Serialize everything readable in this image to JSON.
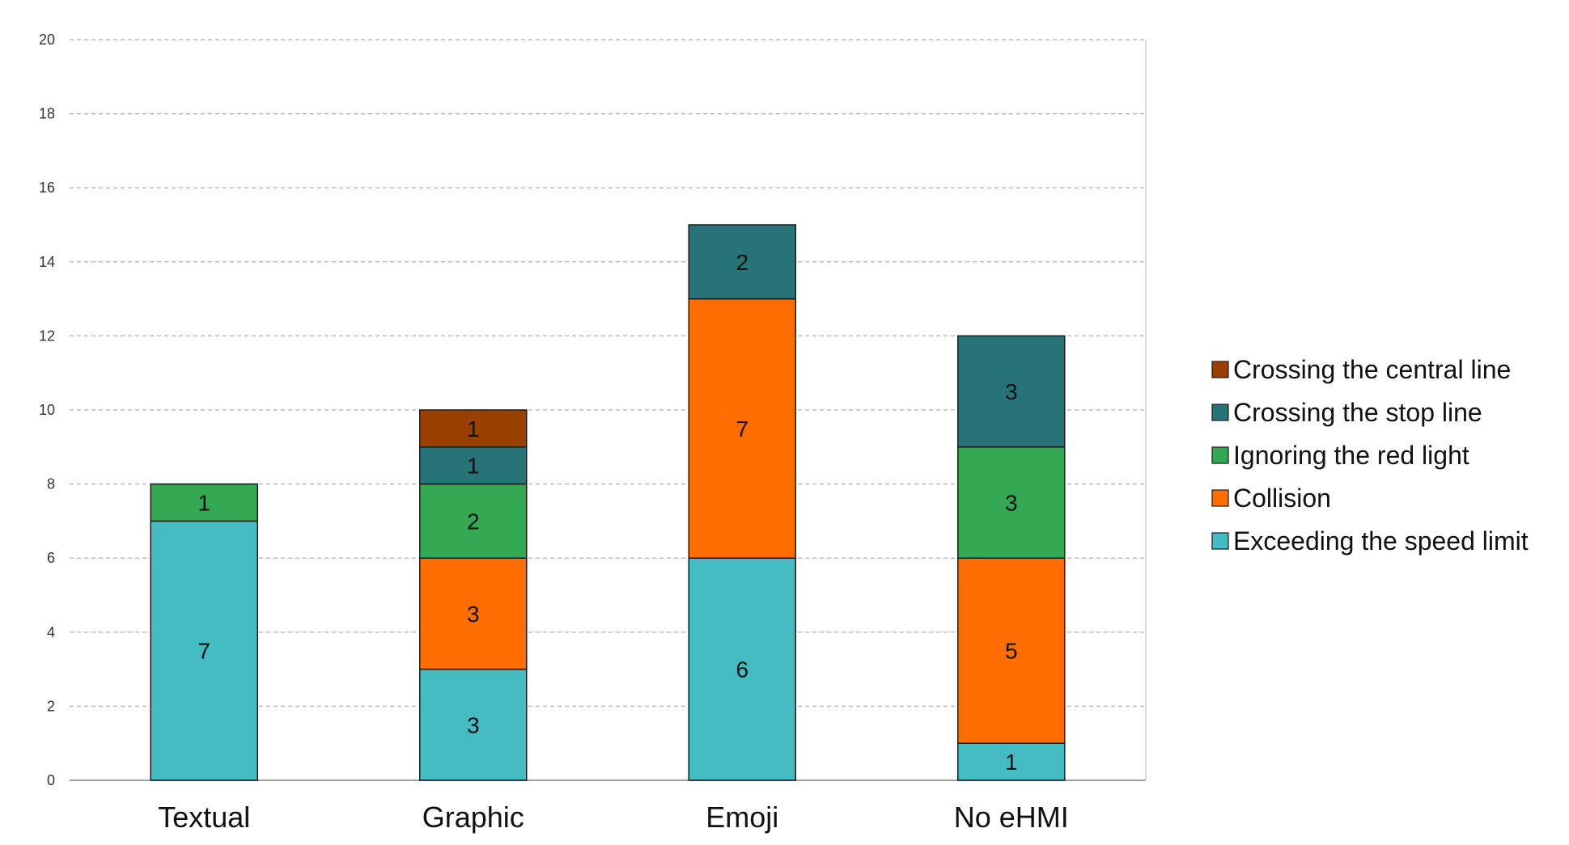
{
  "chart_data": {
    "type": "bar",
    "stacked": true,
    "title": "",
    "xlabel": "",
    "ylabel": "",
    "ylim": [
      0,
      20
    ],
    "yticks": [
      0,
      2,
      4,
      6,
      8,
      10,
      12,
      14,
      16,
      18,
      20
    ],
    "grid": true,
    "legend_position": "right",
    "categories": [
      "Textual",
      "Graphic",
      "Emoji",
      "No eHMI"
    ],
    "series": [
      {
        "name": "Exceeding the speed limit",
        "color": "#45BCC4",
        "values": [
          7,
          3,
          6,
          1
        ]
      },
      {
        "name": "Collision",
        "color": "#FF6D00",
        "values": [
          0,
          3,
          7,
          5
        ]
      },
      {
        "name": "Ignoring the red light",
        "color": "#35A853",
        "values": [
          1,
          2,
          0,
          3
        ]
      },
      {
        "name": "Crossing the stop line",
        "color": "#277478",
        "values": [
          0,
          1,
          2,
          3
        ]
      },
      {
        "name": "Crossing the central line",
        "color": "#994000",
        "values": [
          0,
          1,
          0,
          0
        ]
      }
    ],
    "legend_order": [
      "Crossing the central line",
      "Crossing the stop line",
      "Ignoring the red light",
      "Collision",
      "Exceeding the speed limit"
    ]
  }
}
